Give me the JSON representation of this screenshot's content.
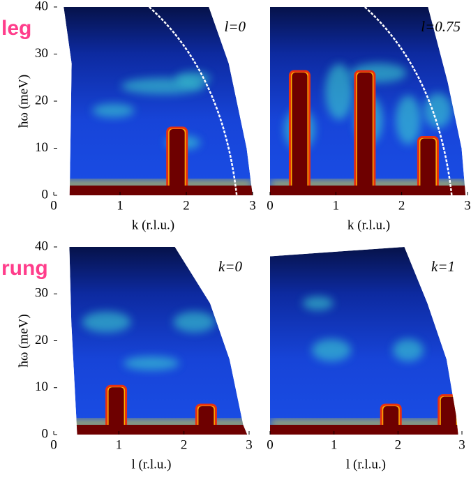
{
  "chart_data": [
    {
      "type": "heatmap",
      "panel_label": "leg",
      "annotation": "l=0",
      "xlabel": "k (r.l.u.)",
      "ylabel": "ħω (meV)",
      "xlim": [
        0,
        3
      ],
      "ylim": [
        0,
        40
      ],
      "xticks": [
        0,
        1,
        2,
        3
      ],
      "yticks": [
        0,
        10,
        20,
        30,
        40
      ]
    },
    {
      "type": "heatmap",
      "annotation": "l=0.75",
      "xlabel": "k (r.l.u.)",
      "xlim": [
        0,
        3
      ],
      "ylim": [
        0,
        40
      ],
      "xticks": [
        0,
        1,
        2,
        3
      ]
    },
    {
      "type": "heatmap",
      "panel_label": "rung",
      "annotation": "k=0",
      "xlabel": "l (r.l.u.)",
      "ylabel": "ħω (meV)",
      "xlim": [
        0,
        3
      ],
      "ylim": [
        0,
        40
      ],
      "xticks": [
        0,
        1,
        2,
        3
      ],
      "yticks": [
        0,
        10,
        20,
        30,
        40
      ]
    },
    {
      "type": "heatmap",
      "annotation": "k=1",
      "xlabel": "l (r.l.u.)",
      "xlim": [
        0,
        3
      ],
      "ylim": [
        0,
        40
      ],
      "xticks": [
        0,
        1,
        2,
        3
      ]
    }
  ]
}
